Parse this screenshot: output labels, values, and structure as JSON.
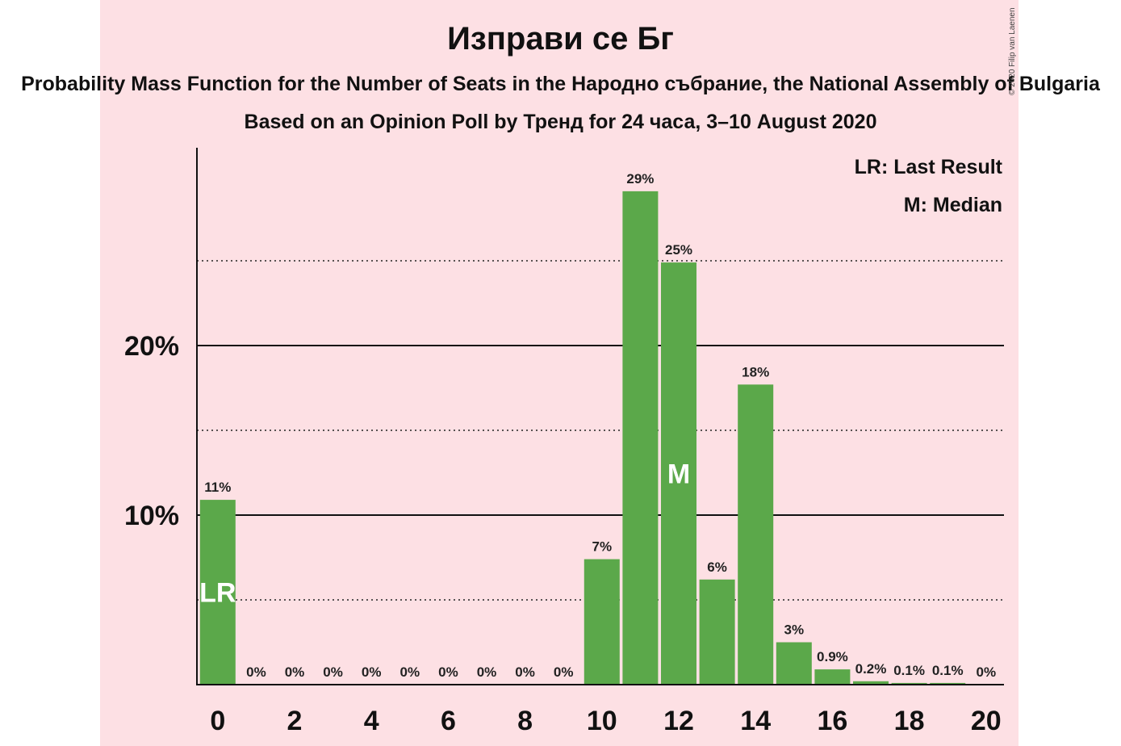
{
  "title": "Изправи се Бг",
  "subtitle": "Probability Mass Function for the Number of Seats in the Народно събрание, the National Assembly of Bulgaria",
  "subtitle2": "Based on an Opinion Poll by Тренд for 24 часа, 3–10 August 2020",
  "copyright": "© 2020 Filip van Laenen",
  "legend": {
    "last_result": "LR: Last Result",
    "median": "M: Median"
  },
  "colors": {
    "background": "#fde0e4",
    "bar": "#5ba84a",
    "marker_text": "#ffffff"
  },
  "chart_data": {
    "type": "bar",
    "title": "Изправи се Бг",
    "xlabel": "",
    "ylabel": "",
    "categories": [
      0,
      1,
      2,
      3,
      4,
      5,
      6,
      7,
      8,
      9,
      10,
      11,
      12,
      13,
      14,
      15,
      16,
      17,
      18,
      19,
      20
    ],
    "values": [
      10.9,
      0,
      0,
      0,
      0,
      0,
      0,
      0,
      0,
      0,
      7.4,
      29.1,
      24.9,
      6.2,
      17.7,
      2.5,
      0.9,
      0.2,
      0.1,
      0.1,
      0
    ],
    "labels": [
      "11%",
      "0%",
      "0%",
      "0%",
      "0%",
      "0%",
      "0%",
      "0%",
      "0%",
      "0%",
      "7%",
      "29%",
      "25%",
      "6%",
      "18%",
      "3%",
      "0.9%",
      "0.2%",
      "0.1%",
      "0.1%",
      "0%"
    ],
    "x_ticks": [
      0,
      2,
      4,
      6,
      8,
      10,
      12,
      14,
      16,
      18,
      20
    ],
    "y_ticks": [
      {
        "value": 10,
        "label": "10%"
      },
      {
        "value": 20,
        "label": "20%"
      }
    ],
    "minor_gridlines": [
      5,
      15,
      25
    ],
    "ylim": [
      0,
      31.7
    ],
    "last_result": {
      "x": 0,
      "label": "LR"
    },
    "median": {
      "x": 12,
      "label": "M"
    },
    "grid": true,
    "legend_position": "top-right"
  }
}
